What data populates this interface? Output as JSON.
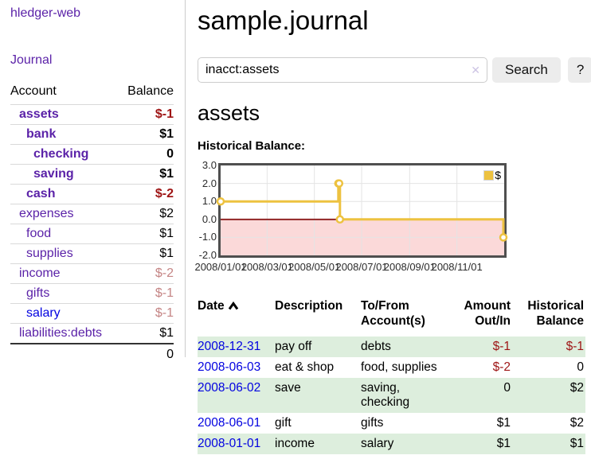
{
  "app": {
    "brand": "hledger-web",
    "nav": {
      "journal": "Journal"
    }
  },
  "sidebar": {
    "header": {
      "account": "Account",
      "balance": "Balance"
    },
    "accounts": [
      {
        "name": "assets",
        "indent": 0,
        "balance": "$-1",
        "bold": true,
        "style": "neg",
        "link": "purple"
      },
      {
        "name": "bank",
        "indent": 1,
        "balance": "$1",
        "bold": true,
        "style": "",
        "link": "purple"
      },
      {
        "name": "checking",
        "indent": 2,
        "balance": "0",
        "bold": true,
        "style": "",
        "link": "purple"
      },
      {
        "name": "saving",
        "indent": 2,
        "balance": "$1",
        "bold": true,
        "style": "",
        "link": "purple"
      },
      {
        "name": "cash",
        "indent": 1,
        "balance": "$-2",
        "bold": true,
        "style": "neg",
        "link": "purple"
      },
      {
        "name": "expenses",
        "indent": 0,
        "balance": "$2",
        "bold": false,
        "style": "",
        "link": "purple"
      },
      {
        "name": "food",
        "indent": 1,
        "balance": "$1",
        "bold": false,
        "style": "",
        "link": "purple"
      },
      {
        "name": "supplies",
        "indent": 1,
        "balance": "$1",
        "bold": false,
        "style": "",
        "link": "purple"
      },
      {
        "name": "income",
        "indent": 0,
        "balance": "$-2",
        "bold": false,
        "style": "faded",
        "link": "purple"
      },
      {
        "name": "gifts",
        "indent": 1,
        "balance": "$-1",
        "bold": false,
        "style": "faded",
        "link": "purple"
      },
      {
        "name": "salary",
        "indent": 1,
        "balance": "$-1",
        "bold": false,
        "style": "faded",
        "link": "blue"
      },
      {
        "name": "liabilities:debts",
        "indent": 0,
        "balance": "$1",
        "bold": false,
        "style": "",
        "link": "purple"
      }
    ],
    "total": "0"
  },
  "main": {
    "title": "sample.journal",
    "search": {
      "value": "inacct:assets",
      "clear_icon": "✕",
      "search_button": "Search",
      "help_button": "?"
    },
    "account_heading": "assets",
    "chart_title": "Historical Balance:"
  },
  "chart_data": {
    "type": "line",
    "step": true,
    "title": "Historical Balance",
    "legend_position": "top-right",
    "x_range": [
      "2008-01-01",
      "2009-01-01"
    ],
    "ylim": [
      -2,
      3
    ],
    "y_ticks": [
      "3.0",
      "2.0",
      "1.0",
      "0.0",
      "-1.0",
      "-2.0"
    ],
    "x_ticks": [
      "2008/01/01",
      "2008/03/01",
      "2008/05/01",
      "2008/07/01",
      "2008/09/01",
      "2008/11/01"
    ],
    "x_tick_dates": [
      "2008-01-01",
      "2008-03-01",
      "2008-05-01",
      "2008-07-01",
      "2008-09-01",
      "2008-11-01"
    ],
    "series": [
      {
        "name": "$",
        "color": "#EDC240",
        "points": [
          [
            "2008-01-01",
            1
          ],
          [
            "2008-06-01",
            2
          ],
          [
            "2008-06-02",
            2
          ],
          [
            "2008-06-03",
            0
          ],
          [
            "2008-12-31",
            -1
          ]
        ]
      }
    ],
    "colors": {
      "negative_region": "#fbd9d9",
      "zero_line": "#8b1a1a",
      "grid": "#e4e4e4",
      "border": "#4f4f4f",
      "tick_text": "#2b2b2b"
    }
  },
  "register": {
    "columns": [
      {
        "label": "Date",
        "align": "left",
        "sort": "asc"
      },
      {
        "label": "Description",
        "align": "left"
      },
      {
        "label": "To/From\nAccount(s)",
        "align": "left"
      },
      {
        "label": "Amount\nOut/In",
        "align": "right"
      },
      {
        "label": "Historical\nBalance",
        "align": "right"
      }
    ],
    "rows": [
      {
        "date": "2008-12-31",
        "description": "pay off",
        "accounts": "debts",
        "amount": "$-1",
        "amount_style": "neg",
        "balance": "$-1",
        "balance_style": "neg",
        "shaded": true
      },
      {
        "date": "2008-06-03",
        "description": "eat & shop",
        "accounts": "food, supplies",
        "amount": "$-2",
        "amount_style": "neg",
        "balance": "0",
        "balance_style": "",
        "shaded": false
      },
      {
        "date": "2008-06-02",
        "description": "save",
        "accounts": "saving,\nchecking",
        "amount": "0",
        "amount_style": "",
        "balance": "$2",
        "balance_style": "",
        "shaded": true
      },
      {
        "date": "2008-06-01",
        "description": "gift",
        "accounts": "gifts",
        "amount": "$1",
        "amount_style": "",
        "balance": "$2",
        "balance_style": "",
        "shaded": false
      },
      {
        "date": "2008-01-01",
        "description": "income",
        "accounts": "salary",
        "amount": "$1",
        "amount_style": "",
        "balance": "$1",
        "balance_style": "",
        "shaded": true
      }
    ]
  },
  "colors": {
    "link_purple": "#5b22a8",
    "link_blue": "#0202e0",
    "negative_strong": "#9e1414",
    "negative_faded": "#c58585",
    "row_stripe_green": "#ddeedd",
    "button_bg": "#ececec",
    "divider": "#cccccc",
    "series_yellow": "#EDC240"
  }
}
